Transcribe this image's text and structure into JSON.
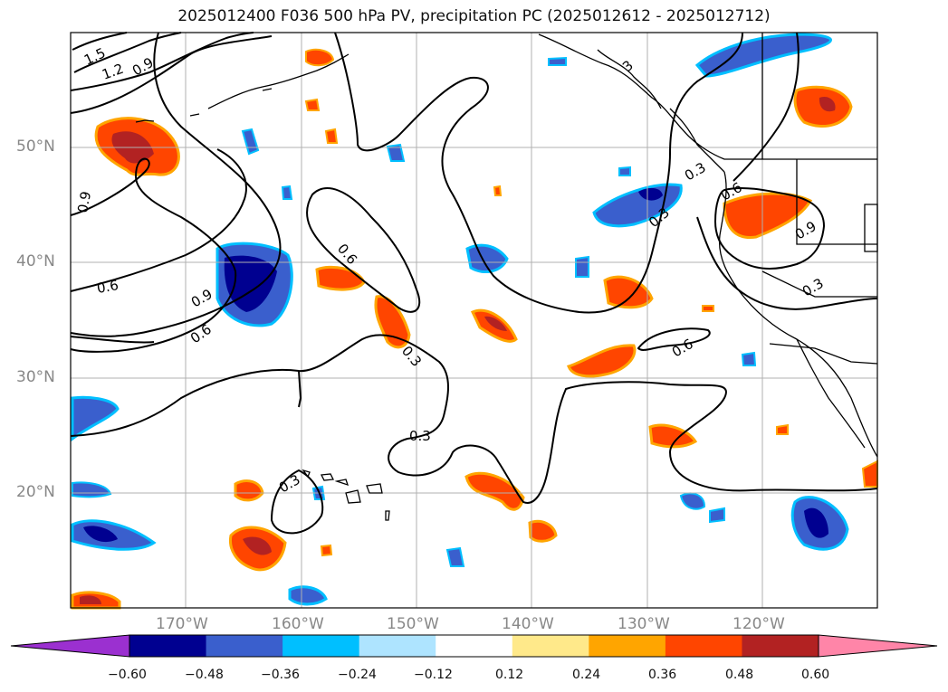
{
  "title": "2025012400 F036 500 hPa PV, precipitation PC (2025012612 - 2025012712)",
  "lat_labels": [
    "50°N",
    "40°N",
    "30°N",
    "20°N"
  ],
  "lon_labels": [
    "170°W",
    "160°W",
    "150°W",
    "140°W",
    "130°W",
    "120°W"
  ],
  "contour_labels": [
    "1.5",
    "1.2",
    "0.9",
    "0.9",
    "0.6",
    "0.9",
    "0.6",
    "0.6",
    "0.3",
    "0.3",
    "0.3",
    "0.3",
    "0.6",
    "0.3",
    "0.6",
    "0.9",
    "0.3",
    "3"
  ],
  "colorbar": {
    "ticks": [
      "−0.60",
      "−0.48",
      "−0.36",
      "−0.24",
      "−0.12",
      "0.12",
      "0.24",
      "0.36",
      "0.48",
      "0.60"
    ],
    "colors": [
      "#9b30d0",
      "#000090",
      "#3a5fcd",
      "#00bfff",
      "#aee4ff",
      "#ffffff",
      "#ffe98a",
      "#ffa500",
      "#ff4500",
      "#b22222",
      "#ff85a8",
      "#ff85a8"
    ]
  }
}
